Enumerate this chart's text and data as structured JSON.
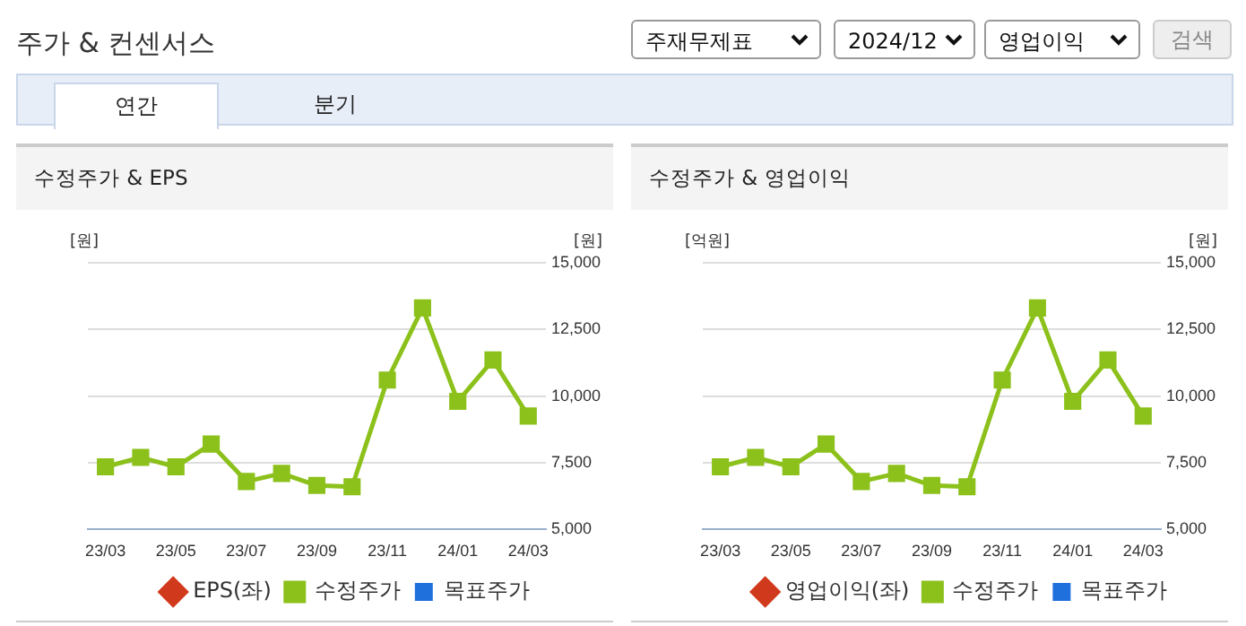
{
  "chart_data": [
    {
      "type": "other",
      "title": "주가 & 컨센서스",
      "annotations": [
        "주재무제표",
        "2024/12",
        "영업이익",
        "검색",
        "연간",
        "분기"
      ]
    },
    {
      "type": "line",
      "title": "수정주가 & EPS",
      "ylabel": "[원]",
      "y2label": "[원]",
      "categories": [
        "23/03",
        null,
        "23/05",
        null,
        "23/07",
        null,
        "23/09",
        null,
        "23/11",
        null,
        "24/01",
        null,
        "24/03"
      ],
      "series": [
        {
          "name": "목표주가",
          "type": "bar",
          "color": "#1f6fdc",
          "values": [
            null,
            null,
            null,
            null,
            null,
            null,
            null,
            null,
            null,
            null,
            null,
            null,
            null
          ],
          "axis": "y2"
        },
        {
          "name": "EPS(좌)",
          "type": "line",
          "color": "#d0391b",
          "marker": "diamond",
          "values": [
            null,
            null,
            null,
            null,
            null,
            null,
            null,
            null,
            null,
            null,
            null,
            null,
            null
          ]
        },
        {
          "name": "수정주가",
          "type": "line",
          "color": "#8cc11b",
          "marker": "square",
          "axis": "y2",
          "values": [
            7350,
            7700,
            7350,
            8200,
            6800,
            7100,
            6650,
            6600,
            10600,
            13300,
            9800,
            11350,
            9250
          ]
        }
      ],
      "y2lim": [
        5000,
        15000
      ],
      "y2ticks": [
        {
          "value": 5000,
          "label": "5,000"
        },
        {
          "value": 7500,
          "label": "7,500"
        },
        {
          "value": 10000,
          "label": "10,000"
        },
        {
          "value": 12500,
          "label": "12,500"
        },
        {
          "value": 15000,
          "label": "15,000"
        }
      ],
      "grid": "y",
      "legend": "bottom",
      "tick_labels": "x"
    },
    {
      "type": "line",
      "title": "수정주가 & 영업이익",
      "ylabel": "[억원]",
      "y2label": "[원]",
      "categories": [
        "23/03",
        null,
        "23/05",
        null,
        "23/07",
        null,
        "23/09",
        null,
        "23/11",
        null,
        "24/01",
        null,
        "24/03"
      ],
      "series": [
        {
          "name": "목표주가",
          "type": "bar",
          "color": "#1f6fdc",
          "values": [
            null,
            null,
            null,
            null,
            null,
            null,
            null,
            null,
            null,
            null,
            null,
            null,
            null
          ],
          "axis": "y2"
        },
        {
          "name": "영업이익(좌)",
          "type": "line",
          "color": "#d0391b",
          "marker": "diamond",
          "values": [
            null,
            null,
            null,
            null,
            null,
            null,
            null,
            null,
            null,
            null,
            null,
            null,
            null
          ]
        },
        {
          "name": "수정주가",
          "type": "line",
          "color": "#8cc11b",
          "marker": "square",
          "axis": "y2",
          "values": [
            7350,
            7700,
            7350,
            8200,
            6800,
            7100,
            6650,
            6600,
            10600,
            13300,
            9800,
            11350,
            9250
          ]
        }
      ],
      "y2lim": [
        5000,
        15000
      ],
      "y2ticks": [
        {
          "value": 5000,
          "label": "5,000"
        },
        {
          "value": 7500,
          "label": "7,500"
        },
        {
          "value": 10000,
          "label": "10,000"
        },
        {
          "value": 12500,
          "label": "12,500"
        },
        {
          "value": 15000,
          "label": "15,000"
        }
      ],
      "grid": "y",
      "legend": "bottom",
      "tick_labels": "x"
    }
  ]
}
